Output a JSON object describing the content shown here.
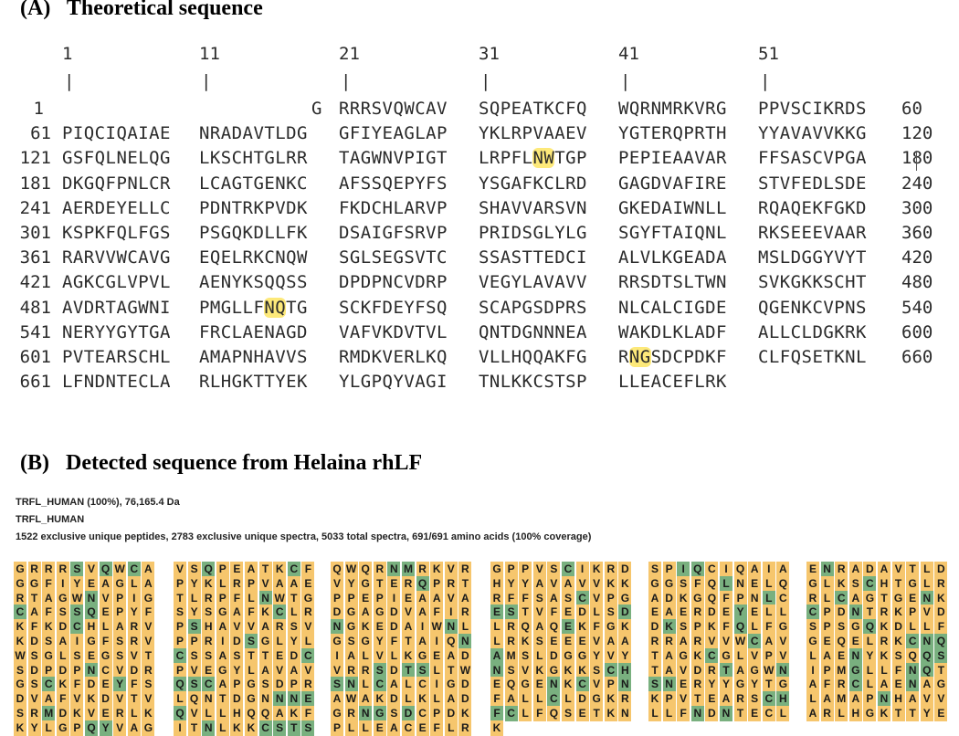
{
  "panel_a": {
    "heading": "(A)   Theoretical sequence",
    "ruler": [
      "1",
      "11",
      "21",
      "31",
      "41",
      "51"
    ],
    "rows": [
      {
        "label": "1",
        "end": "60",
        "blocks": [
          "",
          "",
          "G",
          "RRRSVQWCAV",
          "SQPEATKCFQ",
          "WQRNMRKVRG",
          "PPVSCIKRDS"
        ],
        "hl": []
      },
      {
        "label": "61",
        "end": "120",
        "blocks": [
          "PIQCIQAIAE",
          "NRADAVTLDG",
          "GFIYEAGLAP",
          "YKLRPVAAEV",
          "YGTERQPRTH",
          "YYAVAVVKKG"
        ],
        "hl": []
      },
      {
        "label": "121",
        "end": "180",
        "blocks": [
          "GSFQLNELQG",
          "LKSCHTGLRR",
          "TAGWNVPIGT",
          "LRPFLNWTGP",
          "PEPIEAAVAR",
          "FFSASCVPGA"
        ],
        "hl": [
          {
            "block": 3,
            "start": 5,
            "len": 1
          }
        ]
      },
      {
        "label": "181",
        "end": "240",
        "blocks": [
          "DKGQFPNLCR",
          "LCAGTGENKC",
          "AFSSQEPYFS",
          "YSGAFKCLRD",
          "GAGDVAFIRE",
          "STVFEDLSDE"
        ],
        "hl": []
      },
      {
        "label": "241",
        "end": "300",
        "blocks": [
          "AERDEYELLC",
          "PDNTRKPVDK",
          "FKDCHLARVP",
          "SHAVVARSVN",
          "GKEDAIWNLL",
          "RQAQEKFGKD"
        ],
        "hl": []
      },
      {
        "label": "301",
        "end": "360",
        "blocks": [
          "KSPKFQLFGS",
          "PSGQKDLLFK",
          "DSAIGFSRVP",
          "PRIDSGLYLG",
          "SGYFTAIQNL",
          "RKSEEEVAAR"
        ],
        "hl": []
      },
      {
        "label": "361",
        "end": "420",
        "blocks": [
          "RARVVWCAVG",
          "EQELRKCNQW",
          "SGLSEGSVTC",
          "SSASTTEDCI",
          "ALVLKGEADA",
          "MSLDGGYVYT"
        ],
        "hl": []
      },
      {
        "label": "421",
        "end": "480",
        "blocks": [
          "AGKCGLVPVL",
          "AENYKSQQSS",
          "DPDPNCVDRP",
          "VEGYLAVAVV",
          "RRSDTSLTWN",
          "SVKGKKSCHT"
        ],
        "hl": []
      },
      {
        "label": "481",
        "end": "540",
        "blocks": [
          "AVDRTAGWNI",
          "PMGLLFNQTG",
          "SCKFDEYFSQ",
          "SCAPGSDPRS",
          "NLCALCIGDE",
          "QGENKCVPNS"
        ],
        "hl": [
          {
            "block": 1,
            "start": 6,
            "len": 1
          }
        ]
      },
      {
        "label": "541",
        "end": "600",
        "blocks": [
          "NERYYGYTGA",
          "FRCLAENAGD",
          "VAFVKDVTVL",
          "QNTDGNNNEA",
          "WAKDLKLADF",
          "ALLCLDGKRK"
        ],
        "hl": []
      },
      {
        "label": "601",
        "end": "660",
        "blocks": [
          "PVTEARSCHL",
          "AMAPNHAVVS",
          "RMDKVERLKQ",
          "VLLHQQAKFG",
          "RNGSDCPDKF",
          "CLFQSETKNL"
        ],
        "hl": [
          {
            "block": 4,
            "start": 1,
            "len": 1
          }
        ]
      },
      {
        "label": "661",
        "end": "",
        "blocks": [
          "LFNDNTECLA",
          "RLHGKTTYEK",
          "YLGPQYVAGI",
          "TNLKKCSTSP",
          "LLEACEFLRK",
          ""
        ],
        "hl": []
      }
    ]
  },
  "panel_b": {
    "heading": "(B)   Detected sequence from Helaina rhLF",
    "info": [
      "TRFL_HUMAN (100%), 76,165.4 Da",
      "TRFL_HUMAN",
      "1522 exclusive unique peptides, 2783 exclusive unique spectra, 5033 total spectra, 691/691 amino acids (100% coverage)"
    ],
    "columns": [
      {
        "rows": [
          {
            "seq": "GRRRSVQWCA",
            "g": [
              4,
              6,
              8
            ]
          },
          {
            "seq": "GGFIYEAGLA",
            "g": []
          },
          {
            "seq": "RTAGWNVPIG",
            "g": [
              5
            ]
          },
          {
            "seq": "CAFSSQEPYF",
            "g": [
              0,
              4,
              5
            ]
          },
          {
            "seq": "KFKDCHLARV",
            "g": [
              4
            ]
          },
          {
            "seq": "KDSAIGFSRV",
            "g": []
          },
          {
            "seq": "WSGLSEGSVT",
            "g": []
          },
          {
            "seq": "SDPDPNCVDR",
            "g": [
              5
            ]
          },
          {
            "seq": "GSCKFDEYFS",
            "g": [
              2,
              7
            ]
          },
          {
            "seq": "DVAFVKDVTV",
            "g": []
          },
          {
            "seq": "SRMDKVERLK",
            "g": [
              2
            ]
          },
          {
            "seq": "KYLGPQYVAG",
            "g": [
              5,
              6
            ]
          }
        ]
      },
      {
        "rows": [
          {
            "seq": "VSQPEATKCF",
            "g": [
              2,
              8
            ]
          },
          {
            "seq": "PYKLRPVAAE",
            "g": []
          },
          {
            "seq": "TLRPFLNWTG",
            "g": [
              6
            ]
          },
          {
            "seq": "SYSGAFKCLR",
            "g": [
              7
            ]
          },
          {
            "seq": "PSHAVVARSV",
            "g": [
              1
            ]
          },
          {
            "seq": "PPRIDSGLYL",
            "g": [
              5
            ]
          },
          {
            "seq": "CSSASTTEDC",
            "g": [
              0,
              9
            ]
          },
          {
            "seq": "PVEGYLAVAV",
            "g": []
          },
          {
            "seq": "QSCAPGSDPR",
            "g": [
              0,
              1,
              2
            ]
          },
          {
            "seq": "LQNTDGNNNE",
            "g": [
              7,
              8,
              9
            ]
          },
          {
            "seq": "QVLLHQQAKF",
            "g": [
              0
            ]
          },
          {
            "seq": "ITNLKKCSTS",
            "g": [
              2,
              6,
              7,
              8,
              9
            ]
          }
        ]
      },
      {
        "rows": [
          {
            "seq": "QWQRNMRKVR",
            "g": [
              4,
              5
            ]
          },
          {
            "seq": "VYGTERQPRT",
            "g": [
              6
            ]
          },
          {
            "seq": "PPEPIEAAVA",
            "g": []
          },
          {
            "seq": "DGAGDVAFIR",
            "g": []
          },
          {
            "seq": "NGKEDAIWNL",
            "g": [
              0,
              8
            ]
          },
          {
            "seq": "GSGYFTAIQN",
            "g": [
              9
            ]
          },
          {
            "seq": "IALVLKGEAD",
            "g": []
          },
          {
            "seq": "VRRSDTSLTW",
            "g": [
              3,
              5,
              6
            ]
          },
          {
            "seq": "SNLCALCIGD",
            "g": [
              0,
              1,
              3
            ]
          },
          {
            "seq": "AWAKDLKLAD",
            "g": []
          },
          {
            "seq": "GRNGSDCPDK",
            "g": [
              2,
              3,
              5
            ]
          },
          {
            "seq": "PLLEACEFLR",
            "g": []
          }
        ]
      },
      {
        "rows": [
          {
            "seq": "GPPVSCIKRD",
            "g": [
              5
            ]
          },
          {
            "seq": "HYYAVAVVKK",
            "g": []
          },
          {
            "seq": "RFFSASCVPG",
            "g": [
              6
            ]
          },
          {
            "seq": "ESTVFEDLSD",
            "g": [
              0,
              1,
              9
            ]
          },
          {
            "seq": "LRQAQEKFGK",
            "g": [
              5
            ]
          },
          {
            "seq": "LRKSEEEVAA",
            "g": []
          },
          {
            "seq": "AMSLDGGYVY",
            "g": [
              0
            ]
          },
          {
            "seq": "NSVKGKKSCH",
            "g": [
              0,
              8,
              9
            ]
          },
          {
            "seq": "EQGENKCVPN",
            "g": [
              4,
              6,
              9
            ]
          },
          {
            "seq": "FALLCLDGKR",
            "g": [
              4
            ]
          },
          {
            "seq": "FCLFQSETKN",
            "g": [
              0,
              1
            ]
          },
          {
            "seq": "K",
            "g": []
          }
        ]
      },
      {
        "rows": [
          {
            "seq": "SPIQCIQAIA",
            "g": [
              2,
              3
            ]
          },
          {
            "seq": "GGSFQLNELQ",
            "g": [
              5
            ]
          },
          {
            "seq": "ADKGQFPNLC",
            "g": [
              8
            ]
          },
          {
            "seq": "EAERDEYELL",
            "g": [
              6
            ]
          },
          {
            "seq": "DKSPKFQLFG",
            "g": [
              1,
              6
            ]
          },
          {
            "seq": "RRARVVWCAV",
            "g": [
              7
            ]
          },
          {
            "seq": "TAGKCGLVPV",
            "g": [
              4
            ]
          },
          {
            "seq": "TAVDRTAGWN",
            "g": [
              5,
              9
            ]
          },
          {
            "seq": "SNERYYGYTG",
            "g": [
              0,
              1
            ]
          },
          {
            "seq": "KPVTEARSCH",
            "g": [
              8,
              9
            ]
          },
          {
            "seq": "LLFNDNTECL",
            "g": [
              3,
              5
            ]
          },
          {
            "seq": "",
            "g": []
          }
        ]
      },
      {
        "rows": [
          {
            "seq": "ENRADAVTLD",
            "g": [
              1
            ]
          },
          {
            "seq": "GLKSCHTGLR",
            "g": [
              4
            ]
          },
          {
            "seq": "RLCAGTGENK",
            "g": [
              2,
              8
            ]
          },
          {
            "seq": "CPDNTRKPVD",
            "g": [
              0,
              3
            ]
          },
          {
            "seq": "SPSGQKDLLF",
            "g": [
              4
            ]
          },
          {
            "seq": "GEQELRKCNQ",
            "g": [
              7,
              8,
              9
            ]
          },
          {
            "seq": "LAENYKSQQS",
            "g": [
              3,
              8,
              9
            ]
          },
          {
            "seq": "IPMGLLFNQT",
            "g": [
              3,
              7,
              8
            ]
          },
          {
            "seq": "AFRCLAENAG",
            "g": [
              3,
              7
            ]
          },
          {
            "seq": "LAMAPNHAVV",
            "g": [
              5
            ]
          },
          {
            "seq": "ARLHGKTTYE",
            "g": []
          },
          {
            "seq": "",
            "g": []
          }
        ]
      }
    ]
  }
}
